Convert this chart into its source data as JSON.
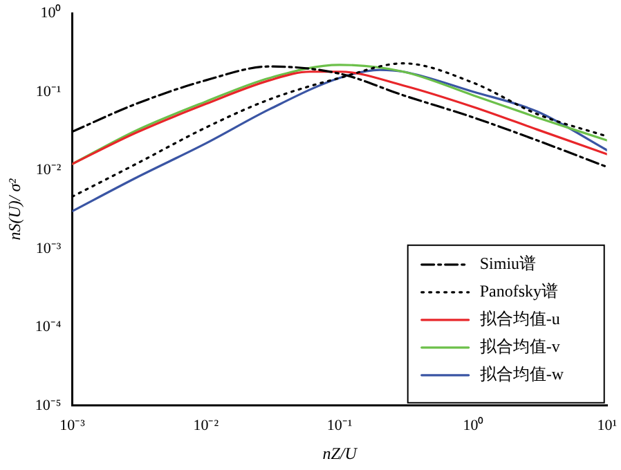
{
  "chart_data": {
    "type": "line",
    "xlabel": "nZ/U",
    "ylabel": "nS(U)/ σ²",
    "log": "xy",
    "grid": false,
    "legend": "bottom right",
    "marker": "none",
    "xlim": [
      0.001,
      10
    ],
    "ylim": [
      1e-05,
      1
    ],
    "xticks": [
      {
        "value": 0.001,
        "label": "10⁻³"
      },
      {
        "value": 0.01,
        "label": "10⁻²"
      },
      {
        "value": 0.1,
        "label": "10⁻¹"
      },
      {
        "value": 1,
        "label": "10⁰"
      },
      {
        "value": 10,
        "label": "10¹"
      }
    ],
    "yticks": [
      {
        "value": 1e-05,
        "label": "10⁻⁵"
      },
      {
        "value": 0.0001,
        "label": "10⁻⁴"
      },
      {
        "value": 0.001,
        "label": "10⁻³"
      },
      {
        "value": 0.01,
        "label": "10⁻²"
      },
      {
        "value": 0.1,
        "label": "10⁻¹"
      },
      {
        "value": 1,
        "label": "10⁰"
      }
    ],
    "series": [
      {
        "name": "Simiu谱",
        "color": "#000000",
        "line_style": "dashdot",
        "x": [
          0.001,
          0.003,
          0.01,
          0.03,
          0.1,
          0.3,
          1,
          3,
          10
        ],
        "values": [
          0.031,
          0.07,
          0.14,
          0.21,
          0.17,
          0.09,
          0.047,
          0.024,
          0.011
        ]
      },
      {
        "name": "Panofsky谱",
        "color": "#000000",
        "line_style": "dotted",
        "x": [
          0.001,
          0.003,
          0.01,
          0.03,
          0.1,
          0.3,
          1,
          3,
          10
        ],
        "values": [
          0.0046,
          0.012,
          0.035,
          0.08,
          0.15,
          0.23,
          0.13,
          0.052,
          0.027
        ]
      },
      {
        "name": "拟合均值-u",
        "color": "#e8262a",
        "line_style": "solid",
        "x": [
          0.001,
          0.003,
          0.01,
          0.03,
          0.06,
          0.1,
          0.3,
          1,
          3,
          10
        ],
        "values": [
          0.012,
          0.03,
          0.07,
          0.14,
          0.18,
          0.18,
          0.12,
          0.064,
          0.033,
          0.016
        ]
      },
      {
        "name": "拟合均值-v",
        "color": "#6cc04a",
        "line_style": "solid",
        "x": [
          0.001,
          0.003,
          0.01,
          0.03,
          0.1,
          0.3,
          1,
          3,
          10
        ],
        "values": [
          0.012,
          0.032,
          0.075,
          0.15,
          0.22,
          0.18,
          0.09,
          0.047,
          0.024
        ]
      },
      {
        "name": "拟合均值-w",
        "color": "#3a55a4",
        "line_style": "solid",
        "x": [
          0.001,
          0.003,
          0.01,
          0.03,
          0.1,
          0.2,
          0.3,
          1,
          3,
          10
        ],
        "values": [
          0.003,
          0.008,
          0.022,
          0.06,
          0.15,
          0.19,
          0.18,
          0.1,
          0.056,
          0.018
        ]
      }
    ]
  }
}
